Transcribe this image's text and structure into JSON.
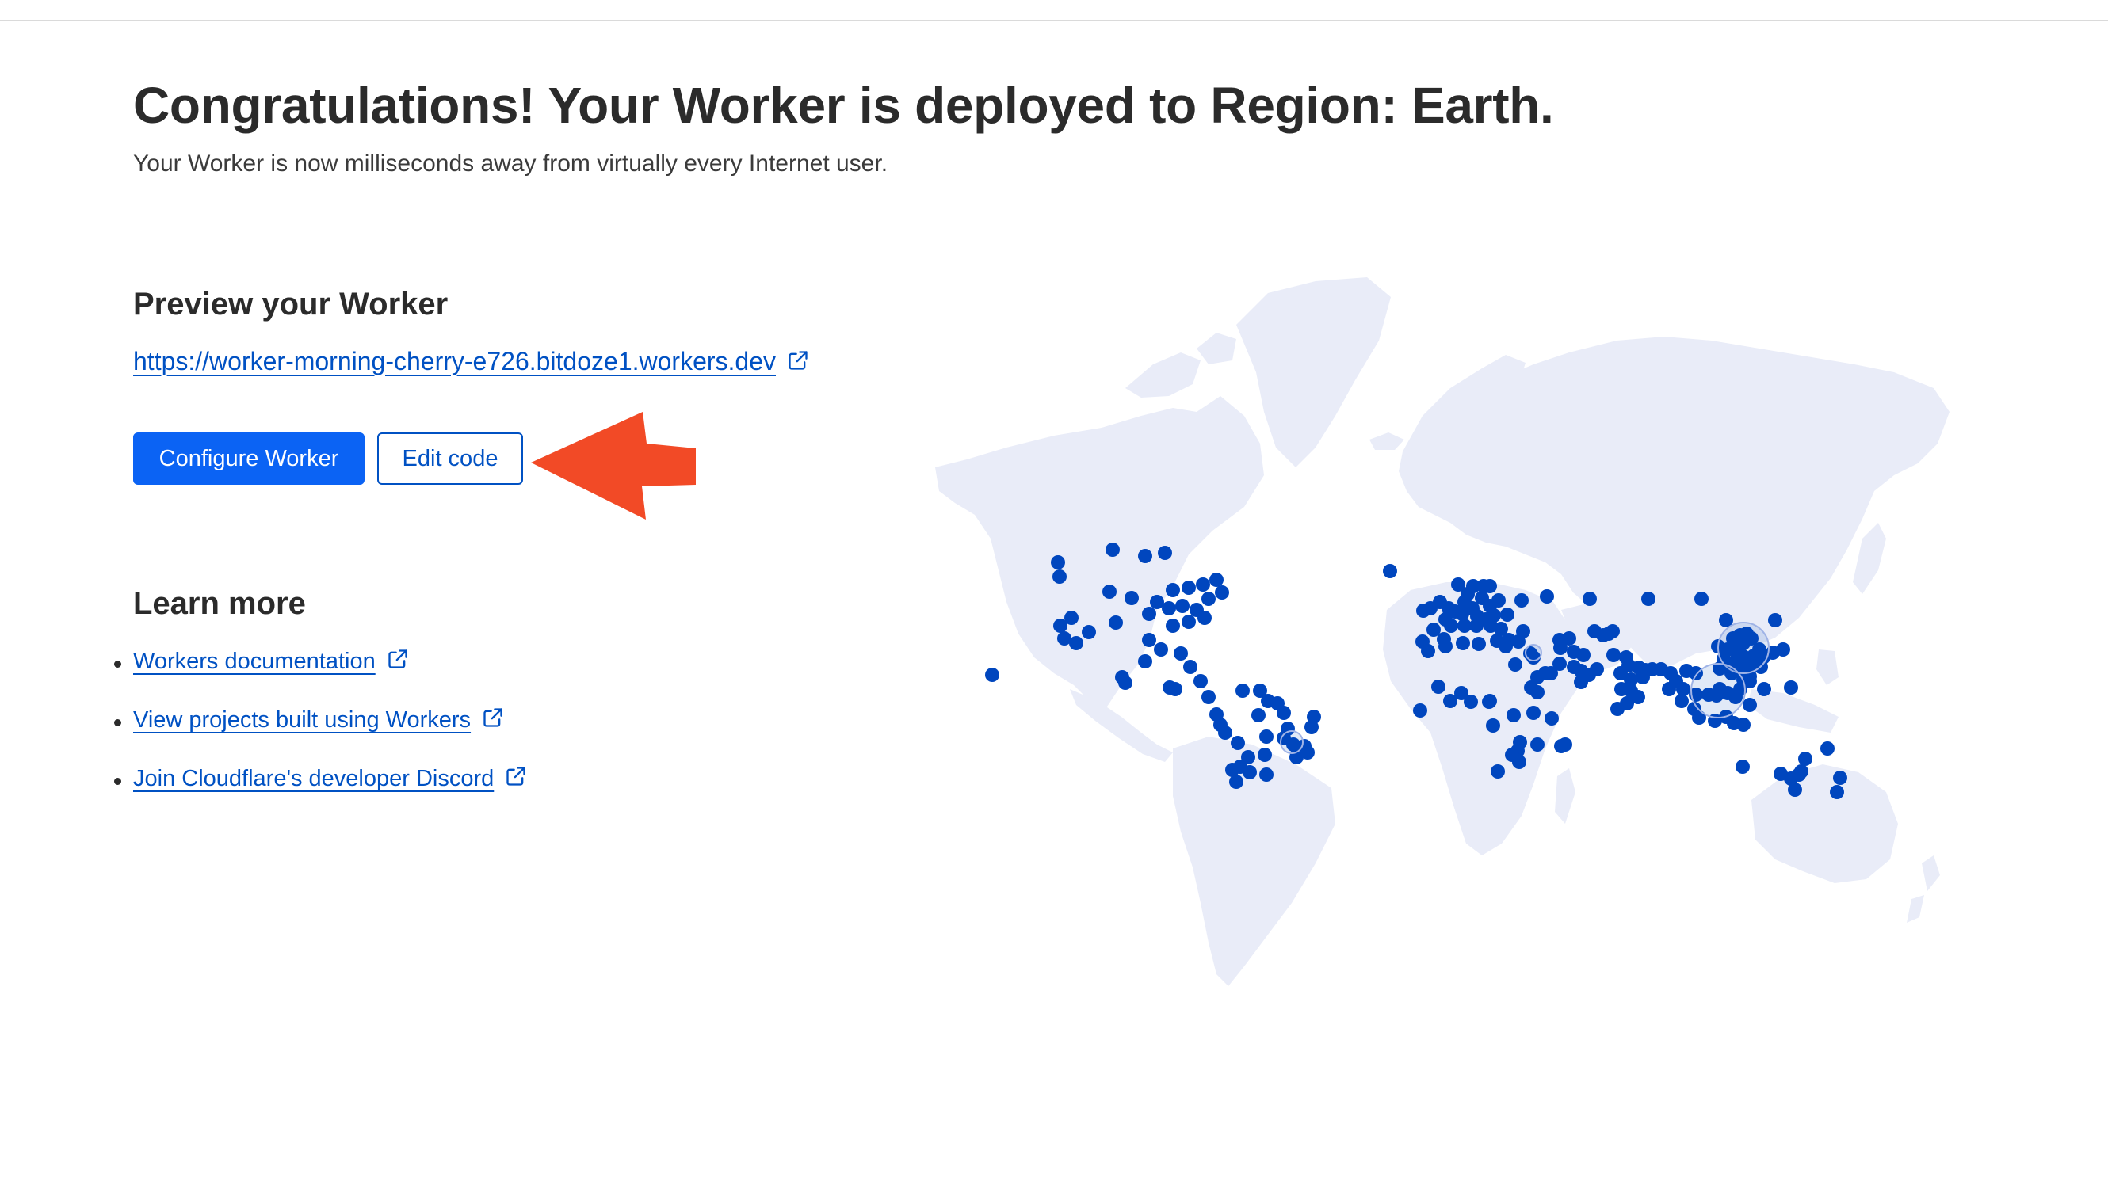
{
  "header": {
    "title": "Congratulations! Your Worker is deployed to Region: Earth.",
    "subtitle": "Your Worker is now milliseconds away from virtually every Internet user."
  },
  "preview": {
    "heading": "Preview your Worker",
    "url": "https://worker-morning-cherry-e726.bitdoze1.workers.dev",
    "icon": "external-link-icon"
  },
  "actions": {
    "configure_label": "Configure Worker",
    "edit_label": "Edit code"
  },
  "annotation": {
    "icon": "arrow-left-icon",
    "color": "#f24a26"
  },
  "learn_more": {
    "heading": "Learn more",
    "links": [
      {
        "label": "Workers documentation"
      },
      {
        "label": "View projects built using Workers"
      },
      {
        "label": "Join Cloudflare's developer Discord"
      }
    ]
  },
  "colors": {
    "accent": "#0b63f4",
    "link": "#0051c3",
    "map_land": "#e9ecf8",
    "map_dot": "#0046be"
  }
}
